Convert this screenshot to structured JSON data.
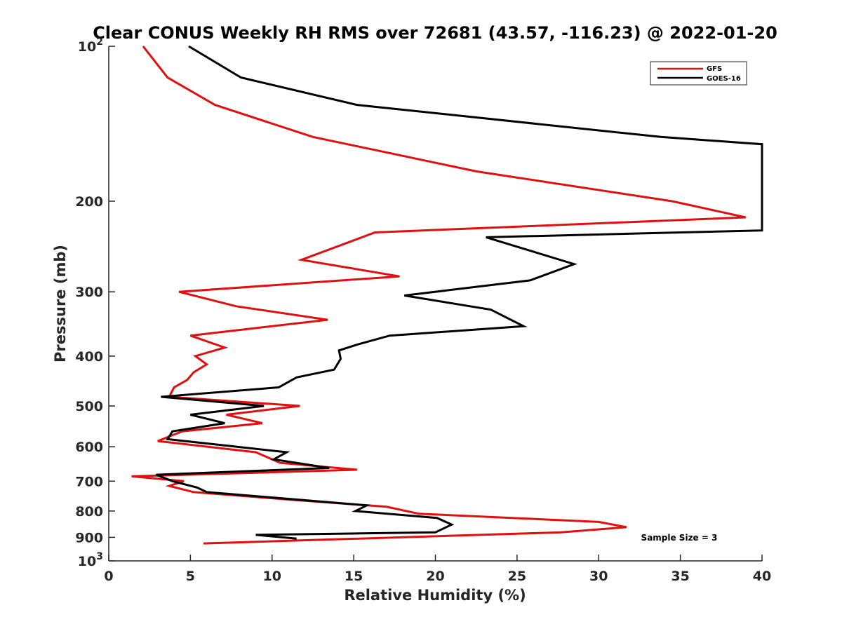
{
  "chart_data": {
    "type": "line",
    "title": "Clear CONUS Weekly RH RMS over 72681 (43.57, -116.23) @ 2022-01-20",
    "xlabel": "Relative Humidity (%)",
    "ylabel": "Pressure (mb)",
    "xlim": [
      0,
      40
    ],
    "ylim": [
      100,
      1000
    ],
    "y_scale": "log",
    "y_reversed": true,
    "grid": false,
    "legend_position": "top-right",
    "x_ticks": [
      "0",
      "5",
      "10",
      "15",
      "20",
      "25",
      "30",
      "35",
      "40"
    ],
    "y_ticks": [
      {
        "value": 100,
        "base": "10",
        "exp": "2"
      },
      {
        "value": 200,
        "base": "200",
        "exp": ""
      },
      {
        "value": 300,
        "base": "300",
        "exp": ""
      },
      {
        "value": 400,
        "base": "400",
        "exp": ""
      },
      {
        "value": 500,
        "base": "500",
        "exp": ""
      },
      {
        "value": 600,
        "base": "600",
        "exp": ""
      },
      {
        "value": 700,
        "base": "700",
        "exp": ""
      },
      {
        "value": 800,
        "base": "800",
        "exp": ""
      },
      {
        "value": 900,
        "base": "900",
        "exp": ""
      },
      {
        "value": 1000,
        "base": "10",
        "exp": "3"
      }
    ],
    "annotation": "Sample Size = 3",
    "series": [
      {
        "name": "GFS",
        "color": "#e01010",
        "points": [
          [
            2.1,
            100
          ],
          [
            3.6,
            115
          ],
          [
            6.5,
            130
          ],
          [
            12.5,
            150
          ],
          [
            22.5,
            175
          ],
          [
            34.5,
            200
          ],
          [
            39,
            215
          ],
          [
            16.3,
            230
          ],
          [
            11.8,
            260
          ],
          [
            17.8,
            280
          ],
          [
            4.3,
            300
          ],
          [
            7.8,
            320
          ],
          [
            13.4,
            340
          ],
          [
            5,
            365
          ],
          [
            7.1,
            385
          ],
          [
            5.3,
            400
          ],
          [
            6,
            415
          ],
          [
            5.2,
            430
          ],
          [
            4.8,
            445
          ],
          [
            4,
            460
          ],
          [
            3.7,
            480
          ],
          [
            11.7,
            500
          ],
          [
            7.2,
            520
          ],
          [
            9.4,
            540
          ],
          [
            4.5,
            560
          ],
          [
            3,
            585
          ],
          [
            9,
            615
          ],
          [
            10.5,
            645
          ],
          [
            15.2,
            665
          ],
          [
            1.4,
            685
          ],
          [
            4.6,
            700
          ],
          [
            3.7,
            715
          ],
          [
            5.2,
            735
          ],
          [
            11,
            760
          ],
          [
            17,
            785
          ],
          [
            19,
            810
          ],
          [
            30,
            840
          ],
          [
            31.7,
            860
          ],
          [
            27.7,
            880
          ],
          [
            5.8,
            925
          ]
        ]
      },
      {
        "name": "GOES-16",
        "color": "#000000",
        "points": [
          [
            4.9,
            100
          ],
          [
            8.1,
            115
          ],
          [
            15.2,
            130
          ],
          [
            33.8,
            150
          ],
          [
            40,
            155
          ],
          [
            40,
            228
          ],
          [
            23.1,
            235
          ],
          [
            28.5,
            265
          ],
          [
            25.8,
            285
          ],
          [
            18.1,
            305
          ],
          [
            23.4,
            325
          ],
          [
            25.4,
            350
          ],
          [
            17.2,
            365
          ],
          [
            15.2,
            380
          ],
          [
            14.1,
            390
          ],
          [
            14.2,
            405
          ],
          [
            13.8,
            425
          ],
          [
            11.5,
            440
          ],
          [
            10.4,
            460
          ],
          [
            3.2,
            480
          ],
          [
            9.5,
            500
          ],
          [
            5,
            520
          ],
          [
            7.1,
            540
          ],
          [
            3.9,
            560
          ],
          [
            3.6,
            580
          ],
          [
            10.9,
            615
          ],
          [
            10.1,
            635
          ],
          [
            10.8,
            640
          ],
          [
            13.5,
            660
          ],
          [
            2.9,
            680
          ],
          [
            3.9,
            700
          ],
          [
            5.4,
            720
          ],
          [
            6,
            735
          ],
          [
            15.8,
            780
          ],
          [
            15.1,
            800
          ],
          [
            20.1,
            825
          ],
          [
            21,
            850
          ],
          [
            20,
            880
          ],
          [
            9,
            890
          ],
          [
            11.5,
            905
          ]
        ]
      }
    ]
  }
}
